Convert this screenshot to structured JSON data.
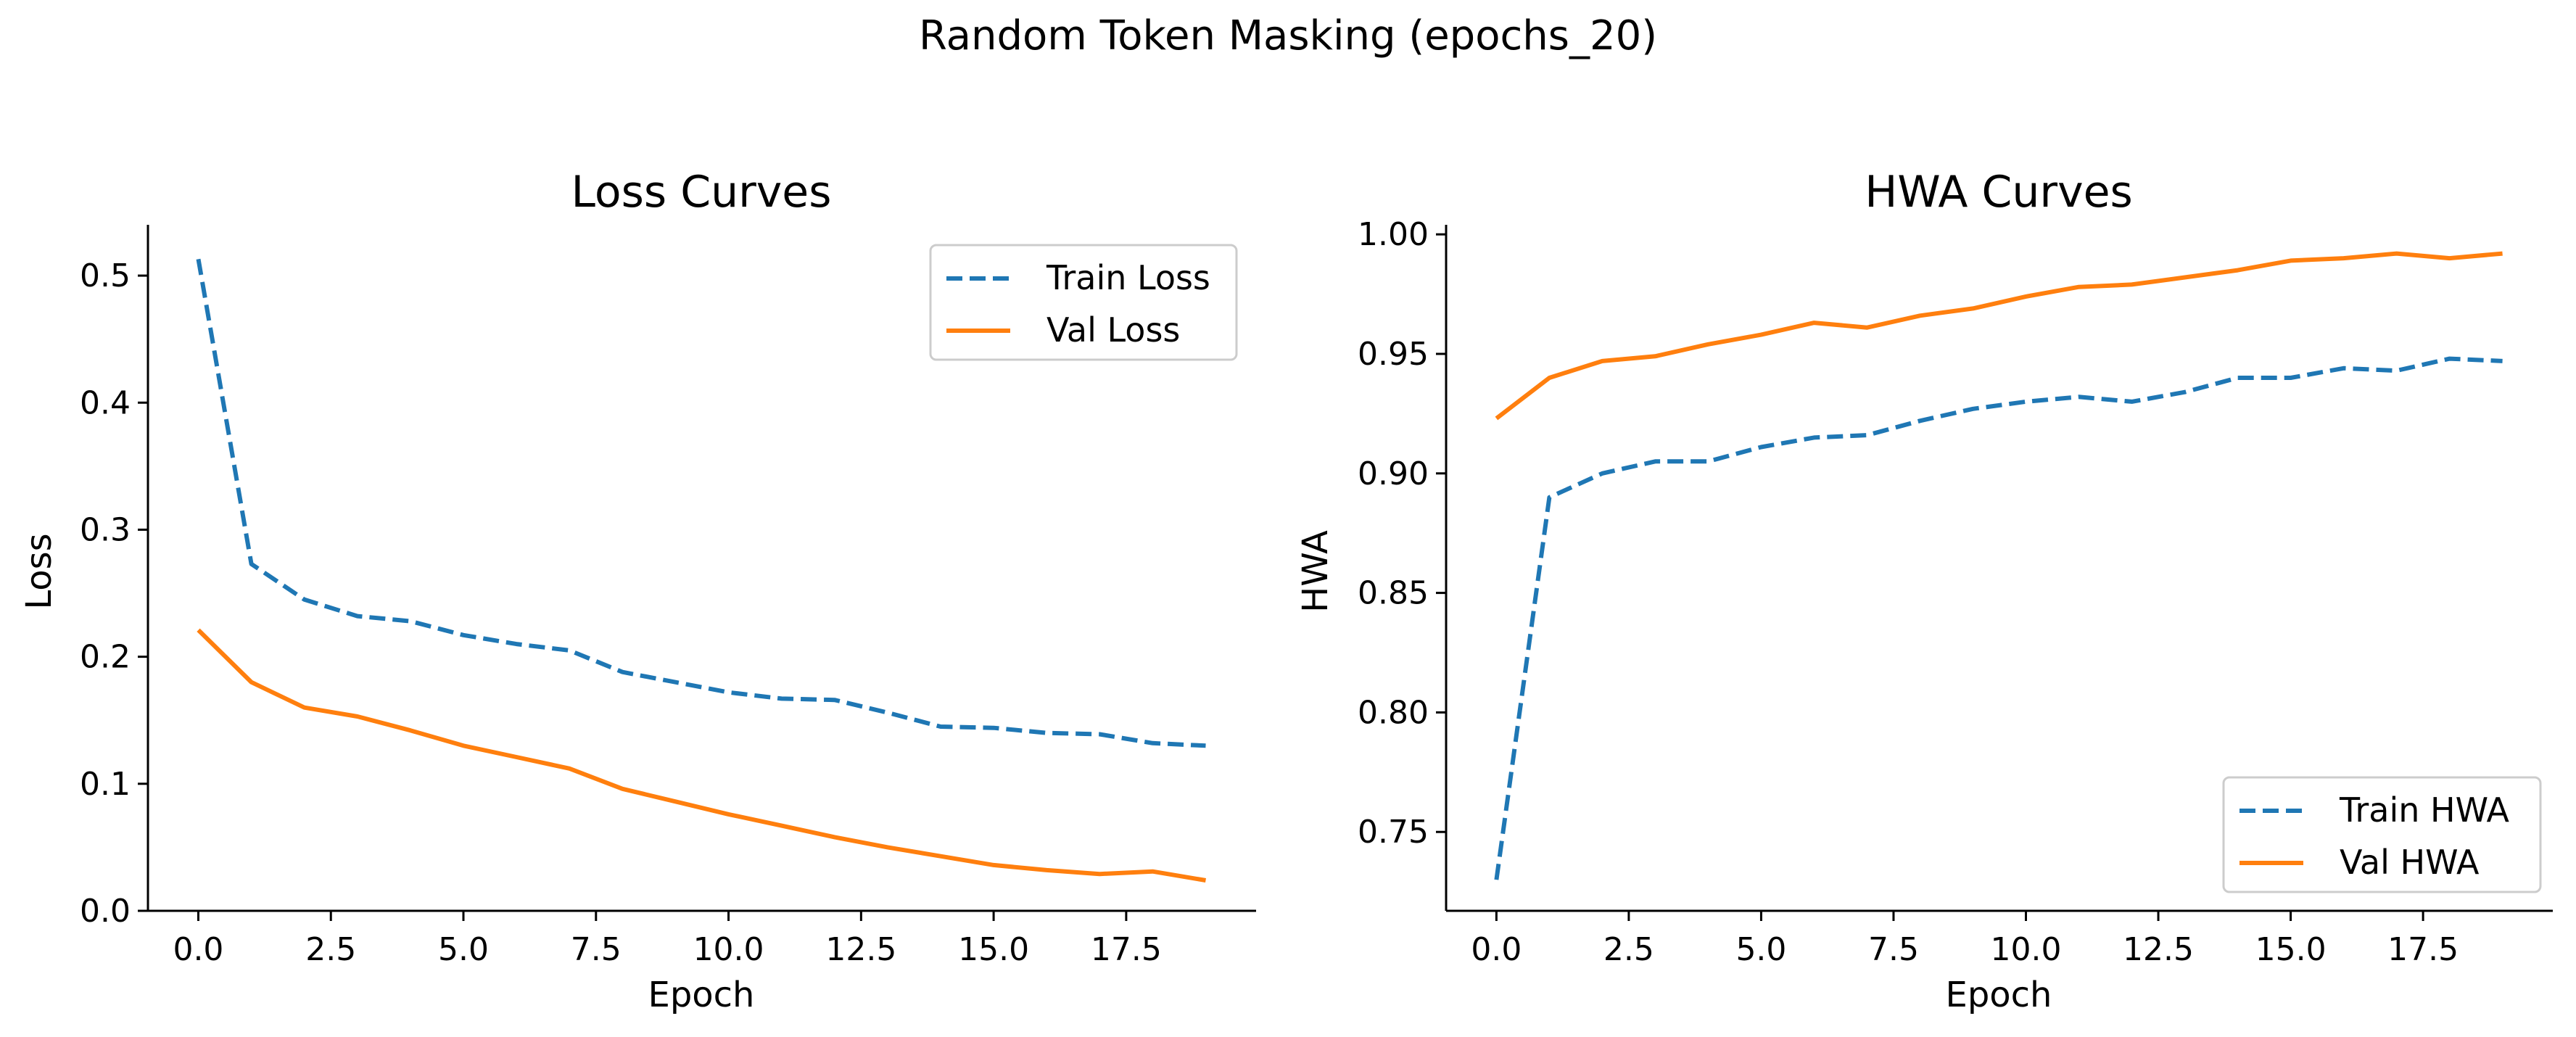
{
  "suptitle": "Random Token Masking (epochs_20)",
  "colors": {
    "train": "#1f77b4",
    "val": "#ff7f0e",
    "axis": "#000000"
  },
  "chart_data": [
    {
      "type": "line",
      "title": "Loss Curves",
      "xlabel": "Epoch",
      "ylabel": "Loss",
      "xlim": [
        -0.95,
        19.95
      ],
      "ylim": [
        0.0,
        0.54
      ],
      "xticks": [
        0.0,
        2.5,
        5.0,
        7.5,
        10.0,
        12.5,
        15.0,
        17.5
      ],
      "xtick_labels": [
        "0.0",
        "2.5",
        "5.0",
        "7.5",
        "10.0",
        "12.5",
        "15.0",
        "17.5"
      ],
      "yticks": [
        0.0,
        0.1,
        0.2,
        0.3,
        0.4,
        0.5
      ],
      "ytick_labels": [
        "0.0",
        "0.1",
        "0.2",
        "0.3",
        "0.4",
        "0.5"
      ],
      "legend_position": "upper right",
      "grid": false,
      "x": [
        0,
        1,
        2,
        3,
        4,
        5,
        6,
        7,
        8,
        9,
        10,
        11,
        12,
        13,
        14,
        15,
        16,
        17,
        18,
        19
      ],
      "series": [
        {
          "name": "Train Loss",
          "style": "dashed",
          "color": "#1f77b4",
          "values": [
            0.513,
            0.273,
            0.245,
            0.232,
            0.228,
            0.217,
            0.21,
            0.205,
            0.188,
            0.18,
            0.172,
            0.167,
            0.166,
            0.156,
            0.145,
            0.144,
            0.14,
            0.139,
            0.132,
            0.13
          ]
        },
        {
          "name": "Val Loss",
          "style": "solid",
          "color": "#ff7f0e",
          "values": [
            0.221,
            0.18,
            0.16,
            0.153,
            0.142,
            0.13,
            0.121,
            0.112,
            0.096,
            0.086,
            0.076,
            0.067,
            0.058,
            0.05,
            0.043,
            0.036,
            0.032,
            0.029,
            0.031,
            0.024
          ]
        }
      ]
    },
    {
      "type": "line",
      "title": "HWA Curves",
      "xlabel": "Epoch",
      "ylabel": "HWA",
      "xlim": [
        -0.95,
        19.95
      ],
      "ylim": [
        0.717,
        1.004
      ],
      "xticks": [
        0.0,
        2.5,
        5.0,
        7.5,
        10.0,
        12.5,
        15.0,
        17.5
      ],
      "xtick_labels": [
        "0.0",
        "2.5",
        "5.0",
        "7.5",
        "10.0",
        "12.5",
        "15.0",
        "17.5"
      ],
      "yticks": [
        0.75,
        0.8,
        0.85,
        0.9,
        0.95,
        1.0
      ],
      "ytick_labels": [
        "0.75",
        "0.80",
        "0.85",
        "0.90",
        "0.95",
        "1.00"
      ],
      "legend_position": "lower right",
      "grid": false,
      "x": [
        0,
        1,
        2,
        3,
        4,
        5,
        6,
        7,
        8,
        9,
        10,
        11,
        12,
        13,
        14,
        15,
        16,
        17,
        18,
        19
      ],
      "series": [
        {
          "name": "Train HWA",
          "style": "dashed",
          "color": "#1f77b4",
          "values": [
            0.73,
            0.89,
            0.9,
            0.905,
            0.905,
            0.911,
            0.915,
            0.916,
            0.922,
            0.927,
            0.93,
            0.932,
            0.93,
            0.934,
            0.94,
            0.94,
            0.944,
            0.943,
            0.948,
            0.947
          ]
        },
        {
          "name": "Val HWA",
          "style": "solid",
          "color": "#ff7f0e",
          "values": [
            0.923,
            0.94,
            0.947,
            0.949,
            0.954,
            0.958,
            0.963,
            0.961,
            0.966,
            0.969,
            0.974,
            0.978,
            0.979,
            0.982,
            0.985,
            0.989,
            0.99,
            0.992,
            0.99,
            0.992
          ]
        }
      ]
    }
  ]
}
